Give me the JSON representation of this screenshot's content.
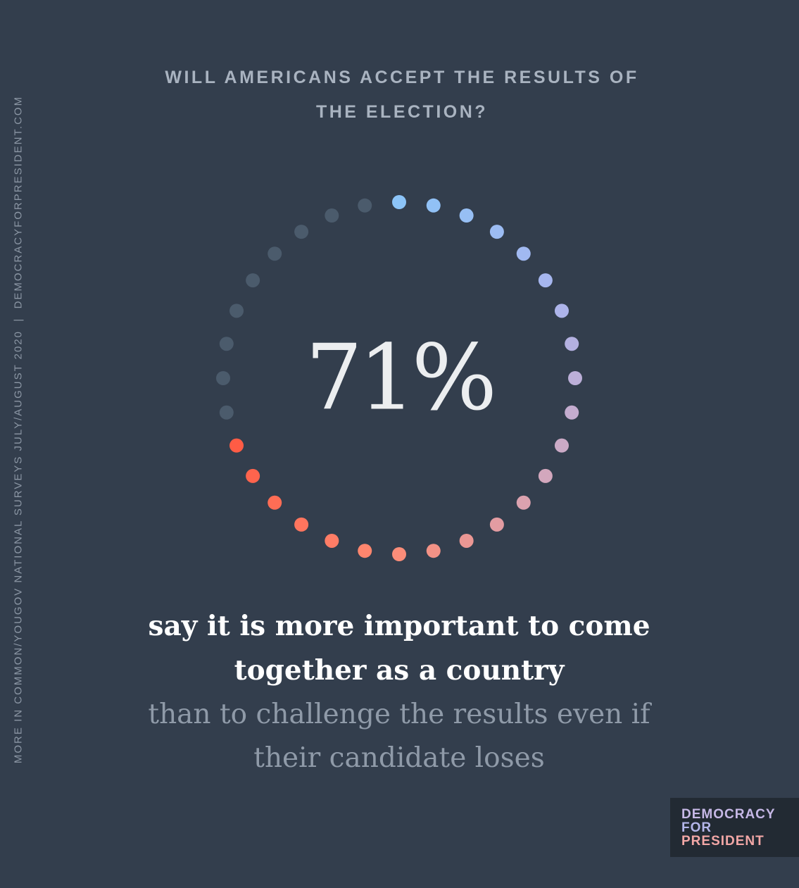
{
  "chart_data": {
    "type": "dot-ring",
    "title": "WILL AMERICANS ACCEPT THE RESULTS OF THE ELECTION?",
    "values": [
      71
    ],
    "value_labels": [
      "71%"
    ],
    "statement": "say it is more important to come together as a country",
    "comparison": "than to challenge the results even if their candidate loses",
    "colors": [
      "#8cc4f8",
      "#a9b5ee",
      "#d3a7bd",
      "#ff8a72",
      "#ff5c45"
    ],
    "empty_color": "#4b5b6c"
  },
  "source": "MORE IN COMMON/YOUGOV NATIONAL SURVEYS JULY/AUGUST 2020  |  DEMOCRACYFORPRESIDENT.COM",
  "logo": [
    "DEMOCRACY",
    "FOR",
    "PRESIDENT"
  ]
}
